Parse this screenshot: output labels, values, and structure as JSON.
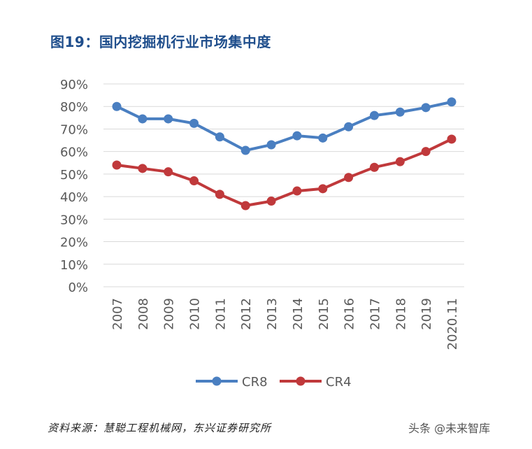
{
  "title": "图19：国内挖掘机行业市场集中度",
  "source": "资料来源：慧聪工程机械网，东兴证券研究所",
  "watermark": "头条 @未来智库",
  "chart_data": {
    "type": "line",
    "title": "图19：国内挖掘机行业市场集中度",
    "xlabel": "",
    "ylabel": "",
    "x": [
      "2007",
      "2008",
      "2009",
      "2010",
      "2011",
      "2012",
      "2013",
      "2014",
      "2015",
      "2016",
      "2017",
      "2018",
      "2019",
      "2020.11"
    ],
    "ylim": [
      0,
      90
    ],
    "yticks": [
      0,
      10,
      20,
      30,
      40,
      50,
      60,
      70,
      80,
      90
    ],
    "ytick_labels": [
      "0%",
      "10%",
      "20%",
      "30%",
      "40%",
      "50%",
      "60%",
      "70%",
      "80%",
      "90%"
    ],
    "grid": true,
    "legend_position": "bottom",
    "series": [
      {
        "name": "CR8",
        "color": "#4a7fc1",
        "values": [
          80,
          74.5,
          74.5,
          72.5,
          66.5,
          60.5,
          63,
          67,
          66,
          71,
          76,
          77.5,
          79.5,
          82
        ]
      },
      {
        "name": "CR4",
        "color": "#c0393b",
        "values": [
          54,
          52.5,
          51,
          47,
          41,
          36,
          38,
          42.5,
          43.5,
          48.5,
          53,
          55.5,
          60,
          65.5
        ]
      }
    ]
  }
}
